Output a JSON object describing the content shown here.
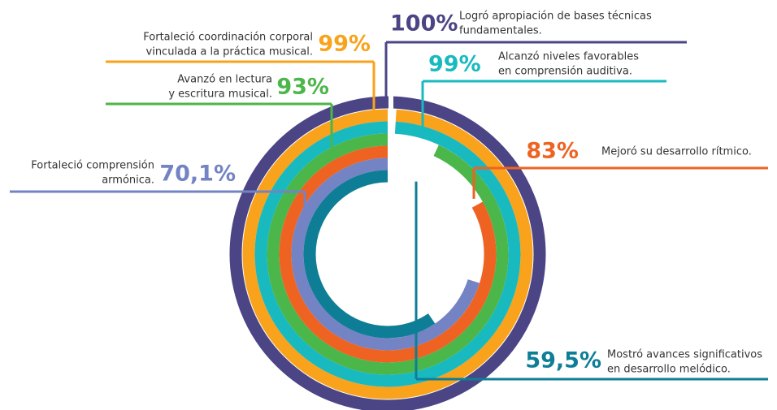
{
  "chart_data": {
    "type": "radial-bar",
    "categories": [
      [
        "Logró apropiación de bases técnicas",
        "fundamentales."
      ],
      [
        "Fortaleció coordinación corporal",
        "vinculada a la práctica musical."
      ],
      [
        "Alcanzó niveles favorables",
        "en comprensión auditiva."
      ],
      [
        "Avanzó en lectura",
        "y escritura musical."
      ],
      [
        "Mejoró su desarrollo rítmico."
      ],
      [
        "Fortaleció comprensión",
        "armónica."
      ],
      [
        "Mostró avances significativos",
        "en desarrollo melódico."
      ]
    ],
    "values": [
      100,
      99,
      99,
      93,
      83,
      70.1,
      59.5
    ],
    "value_labels": [
      "100%",
      "99%",
      "99%",
      "93%",
      "83%",
      "70,1%",
      "59,5%"
    ],
    "colors": [
      "#4b4585",
      "#f9a21b",
      "#19b9c0",
      "#4bb649",
      "#ee6322",
      "#7383c4",
      "#0e7e96"
    ],
    "ylim": [
      0,
      100
    ]
  }
}
